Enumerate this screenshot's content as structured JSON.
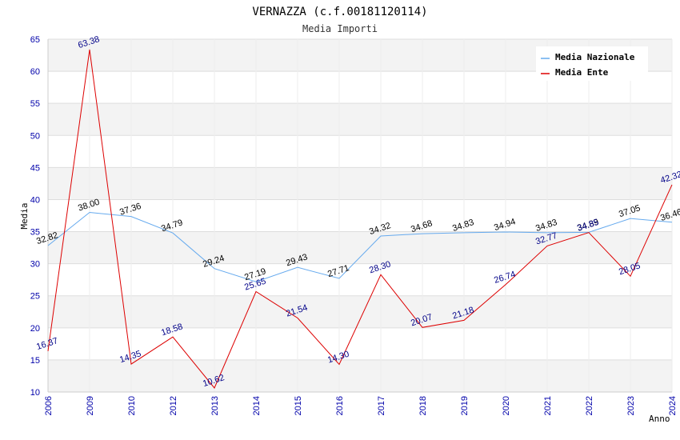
{
  "chart_data": {
    "type": "line",
    "title": "VERNAZZA (c.f.00181120114)",
    "subtitle": "Media Importi",
    "xlabel": "Anno",
    "ylabel": "Media",
    "ylim": [
      10,
      65
    ],
    "y_ticks": [
      "10",
      "15",
      "20",
      "25",
      "30",
      "35",
      "40",
      "45",
      "50",
      "55",
      "60",
      "65"
    ],
    "categories": [
      "2006",
      "2009",
      "2010",
      "2012",
      "2013",
      "2014",
      "2015",
      "2016",
      "2017",
      "2018",
      "2019",
      "2020",
      "2021",
      "2022",
      "2023",
      "2024"
    ],
    "grid": true,
    "legend_position": "top-right",
    "series": [
      {
        "name": "Media Nazionale",
        "color": "#66aaee",
        "label_color": "#000000",
        "values": [
          32.82,
          38.0,
          37.36,
          34.79,
          29.24,
          27.19,
          29.43,
          27.71,
          34.32,
          34.68,
          34.83,
          34.94,
          34.83,
          34.89,
          37.05,
          36.46
        ],
        "labels": [
          "32.82",
          "38.00",
          "37.36",
          "34.79",
          "29.24",
          "27.19",
          "29.43",
          "27.71",
          "34.32",
          "34.68",
          "34.83",
          "34.94",
          "34.83",
          "34.89",
          "37.05",
          "36.46"
        ]
      },
      {
        "name": "Media Ente",
        "color": "#dd0000",
        "label_color": "#000088",
        "values": [
          16.37,
          63.38,
          14.35,
          18.58,
          10.62,
          25.65,
          21.54,
          14.3,
          28.3,
          20.07,
          21.18,
          26.74,
          32.77,
          34.85,
          28.05,
          42.32
        ],
        "labels": [
          "16.37",
          "63.38",
          "14.35",
          "18.58",
          "10.62",
          "25.65",
          "21.54",
          "14.30",
          "28.30",
          "20.07",
          "21.18",
          "26.74",
          "32.77",
          "34.85",
          "28.05",
          "42.32"
        ]
      }
    ]
  }
}
